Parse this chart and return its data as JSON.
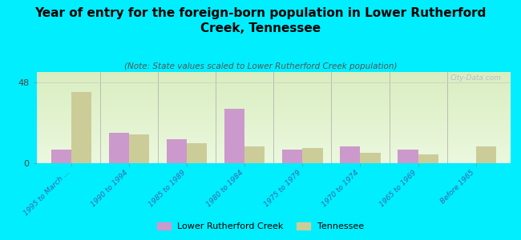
{
  "title": "Year of entry for the foreign-born population in Lower Rutherford\nCreek, Tennessee",
  "subtitle": "(Note: State values scaled to Lower Rutherford Creek population)",
  "categories": [
    "1995 to March ...",
    "1990 to 1994",
    "1985 to 1989",
    "1980 to 1984",
    "1975 to 1979",
    "1970 to 1974",
    "1965 to 1969",
    "Before 1965"
  ],
  "lrc_values": [
    8,
    18,
    14,
    32,
    8,
    10,
    8,
    0
  ],
  "tn_values": [
    42,
    17,
    12,
    10,
    9,
    6,
    5,
    10
  ],
  "lrc_color": "#cc99cc",
  "tn_color": "#cccc99",
  "bg_color": "#00eeff",
  "ytick": 48,
  "ylim": [
    0,
    54
  ],
  "bar_width": 0.35,
  "legend_labels": [
    "Lower Rutherford Creek",
    "Tennessee"
  ],
  "watermark": "City-Data.com",
  "title_fontsize": 11,
  "subtitle_fontsize": 7.5,
  "tick_label_fontsize": 6.5,
  "ytick_fontsize": 8
}
